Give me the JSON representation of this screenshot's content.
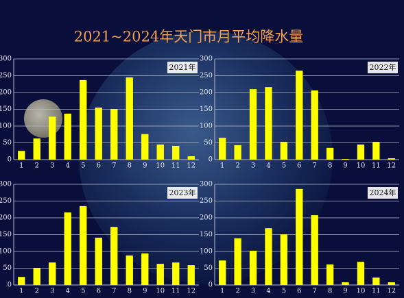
{
  "title": "2021~2024年天门市月平均降水量",
  "chart_data": [
    {
      "type": "bar",
      "title": "2021年",
      "categories": [
        "1",
        "2",
        "3",
        "4",
        "5",
        "6",
        "7",
        "8",
        "9",
        "10",
        "11",
        "12"
      ],
      "values": [
        26,
        63,
        128,
        137,
        237,
        155,
        151,
        245,
        76,
        45,
        41,
        10
      ],
      "color": "#ffff00",
      "ylim": [
        0,
        300
      ],
      "yticks": [
        0,
        50,
        100,
        150,
        200,
        250,
        300
      ],
      "grid": true
    },
    {
      "type": "bar",
      "title": "2022年",
      "categories": [
        "1",
        "2",
        "3",
        "4",
        "5",
        "6",
        "7",
        "8",
        "9",
        "10",
        "11",
        "12"
      ],
      "values": [
        65,
        43,
        210,
        216,
        53,
        265,
        206,
        35,
        2,
        45,
        53,
        4
      ],
      "color": "#ffff00",
      "ylim": [
        0,
        300
      ],
      "yticks": [
        0,
        50,
        100,
        150,
        200,
        250,
        300
      ],
      "grid": true
    },
    {
      "type": "bar",
      "title": "2023年",
      "categories": [
        "1",
        "2",
        "3",
        "4",
        "5",
        "6",
        "7",
        "8",
        "9",
        "10",
        "11",
        "12"
      ],
      "values": [
        24,
        51,
        67,
        216,
        235,
        141,
        173,
        88,
        94,
        63,
        67,
        59
      ],
      "color": "#ffff00",
      "ylim": [
        0,
        300
      ],
      "yticks": [
        0,
        50,
        100,
        150,
        200,
        250,
        300
      ],
      "grid": true
    },
    {
      "type": "bar",
      "title": "2024年",
      "categories": [
        "1",
        "2",
        "3",
        "4",
        "5",
        "6",
        "7",
        "8",
        "9",
        "10",
        "11",
        "12"
      ],
      "values": [
        73,
        139,
        102,
        169,
        151,
        286,
        208,
        61,
        8,
        69,
        22,
        8
      ],
      "color": "#ffff00",
      "ylim": [
        0,
        300
      ],
      "yticks": [
        0,
        50,
        100,
        150,
        200,
        250,
        300
      ],
      "grid": true
    }
  ]
}
